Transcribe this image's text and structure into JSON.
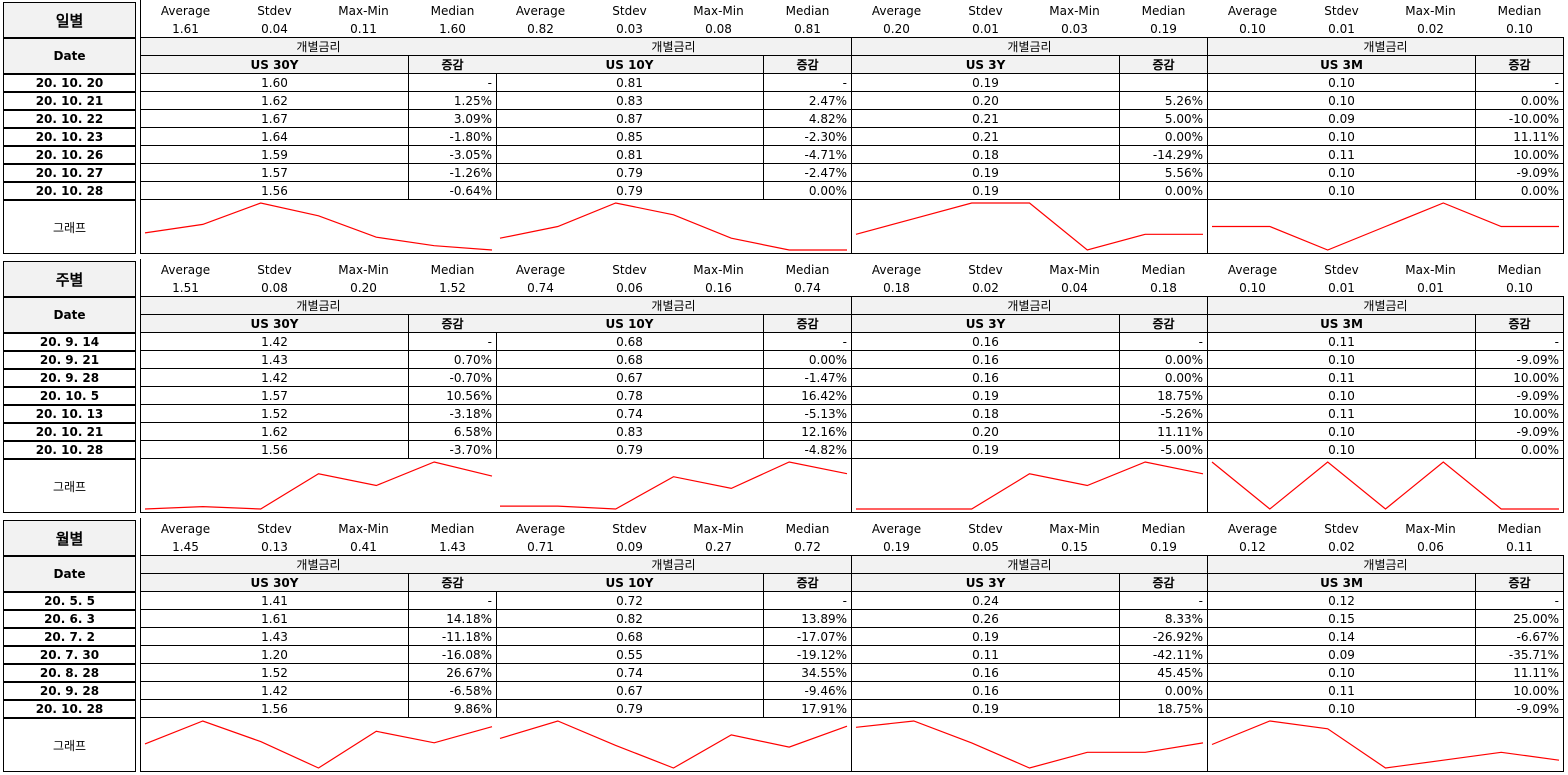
{
  "stat_headers": [
    "Average",
    "Stdev",
    "Max-Min",
    "Median"
  ],
  "group_label": "개별금리",
  "change_label": "증감",
  "date_label": "Date",
  "graph_label": "그래프",
  "line_color": "#ff0000",
  "sections": [
    {
      "title": "일별",
      "dates": [
        "20. 10. 20",
        "20. 10. 21",
        "20. 10. 22",
        "20. 10. 23",
        "20. 10. 26",
        "20. 10. 27",
        "20. 10. 28"
      ],
      "series": [
        {
          "name": "US 30Y",
          "stats": [
            "1.61",
            "0.04",
            "0.11",
            "1.60"
          ],
          "values": [
            "1.60",
            "1.62",
            "1.67",
            "1.64",
            "1.59",
            "1.57",
            "1.56"
          ],
          "changes": [
            "-",
            "1.25%",
            "3.09%",
            "-1.80%",
            "-3.05%",
            "-1.26%",
            "-0.64%"
          ]
        },
        {
          "name": "US 10Y",
          "stats": [
            "0.82",
            "0.03",
            "0.08",
            "0.81"
          ],
          "values": [
            "0.81",
            "0.83",
            "0.87",
            "0.85",
            "0.81",
            "0.79",
            "0.79"
          ],
          "changes": [
            "-",
            "2.47%",
            "4.82%",
            "-2.30%",
            "-4.71%",
            "-2.47%",
            "0.00%"
          ]
        },
        {
          "name": "US 3Y",
          "stats": [
            "0.20",
            "0.01",
            "0.03",
            "0.19"
          ],
          "values": [
            "0.19",
            "0.20",
            "0.21",
            "0.21",
            "0.18",
            "0.19",
            "0.19"
          ],
          "changes": [
            "",
            "5.26%",
            "5.00%",
            "0.00%",
            "-14.29%",
            "5.56%",
            "0.00%"
          ]
        },
        {
          "name": "US 3M",
          "stats": [
            "0.10",
            "0.01",
            "0.02",
            "0.10"
          ],
          "values": [
            "0.10",
            "0.10",
            "0.09",
            "0.10",
            "0.11",
            "0.10",
            "0.10"
          ],
          "changes": [
            "-",
            "0.00%",
            "-10.00%",
            "11.11%",
            "10.00%",
            "-9.09%",
            "0.00%"
          ]
        }
      ]
    },
    {
      "title": "주별",
      "dates": [
        "20. 9. 14",
        "20. 9. 21",
        "20. 9. 28",
        "20. 10. 5",
        "20. 10. 13",
        "20. 10. 21",
        "20. 10. 28"
      ],
      "series": [
        {
          "name": "US 30Y",
          "stats": [
            "1.51",
            "0.08",
            "0.20",
            "1.52"
          ],
          "values": [
            "1.42",
            "1.43",
            "1.42",
            "1.57",
            "1.52",
            "1.62",
            "1.56"
          ],
          "changes": [
            "-",
            "0.70%",
            "-0.70%",
            "10.56%",
            "-3.18%",
            "6.58%",
            "-3.70%"
          ]
        },
        {
          "name": "US 10Y",
          "stats": [
            "0.74",
            "0.06",
            "0.16",
            "0.74"
          ],
          "values": [
            "0.68",
            "0.68",
            "0.67",
            "0.78",
            "0.74",
            "0.83",
            "0.79"
          ],
          "changes": [
            "-",
            "0.00%",
            "-1.47%",
            "16.42%",
            "-5.13%",
            "12.16%",
            "-4.82%"
          ]
        },
        {
          "name": "US 3Y",
          "stats": [
            "0.18",
            "0.02",
            "0.04",
            "0.18"
          ],
          "values": [
            "0.16",
            "0.16",
            "0.16",
            "0.19",
            "0.18",
            "0.20",
            "0.19"
          ],
          "changes": [
            "-",
            "0.00%",
            "0.00%",
            "18.75%",
            "-5.26%",
            "11.11%",
            "-5.00%"
          ]
        },
        {
          "name": "US 3M",
          "stats": [
            "0.10",
            "0.01",
            "0.01",
            "0.10"
          ],
          "values": [
            "0.11",
            "0.10",
            "0.11",
            "0.10",
            "0.11",
            "0.10",
            "0.10"
          ],
          "changes": [
            "-",
            "-9.09%",
            "10.00%",
            "-9.09%",
            "10.00%",
            "-9.09%",
            "0.00%"
          ]
        }
      ]
    },
    {
      "title": "월별",
      "dates": [
        "20. 5. 5",
        "20. 6. 3",
        "20. 7. 2",
        "20. 7. 30",
        "20. 8. 28",
        "20. 9. 28",
        "20. 10. 28"
      ],
      "series": [
        {
          "name": "US 30Y",
          "stats": [
            "1.45",
            "0.13",
            "0.41",
            "1.43"
          ],
          "values": [
            "1.41",
            "1.61",
            "1.43",
            "1.20",
            "1.52",
            "1.42",
            "1.56"
          ],
          "changes": [
            "-",
            "14.18%",
            "-11.18%",
            "-16.08%",
            "26.67%",
            "-6.58%",
            "9.86%"
          ]
        },
        {
          "name": "US 10Y",
          "stats": [
            "0.71",
            "0.09",
            "0.27",
            "0.72"
          ],
          "values": [
            "0.72",
            "0.82",
            "0.68",
            "0.55",
            "0.74",
            "0.67",
            "0.79"
          ],
          "changes": [
            "-",
            "13.89%",
            "-17.07%",
            "-19.12%",
            "34.55%",
            "-9.46%",
            "17.91%"
          ]
        },
        {
          "name": "US 3Y",
          "stats": [
            "0.19",
            "0.05",
            "0.15",
            "0.19"
          ],
          "values": [
            "0.24",
            "0.26",
            "0.19",
            "0.11",
            "0.16",
            "0.16",
            "0.19"
          ],
          "changes": [
            "-",
            "8.33%",
            "-26.92%",
            "-42.11%",
            "45.45%",
            "0.00%",
            "18.75%"
          ]
        },
        {
          "name": "US 3M",
          "stats": [
            "0.12",
            "0.02",
            "0.06",
            "0.11"
          ],
          "values": [
            "0.12",
            "0.15",
            "0.14",
            "0.09",
            "0.10",
            "0.11",
            "0.10"
          ],
          "changes": [
            "-",
            "25.00%",
            "-6.67%",
            "-35.71%",
            "11.11%",
            "10.00%",
            "-9.09%"
          ]
        }
      ]
    }
  ]
}
